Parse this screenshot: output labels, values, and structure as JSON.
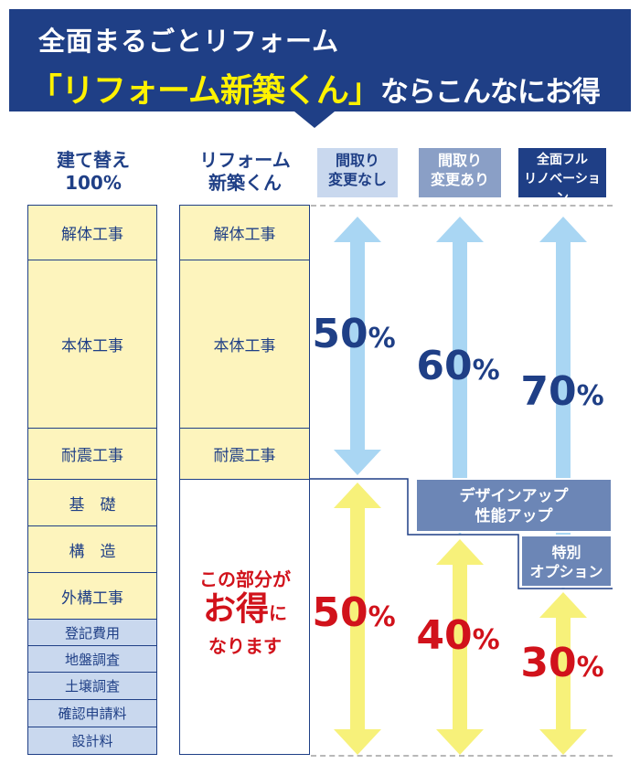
{
  "banner": {
    "line1": "全面まるごとリフォーム",
    "line2_highlight": "「リフォーム新築くん」",
    "line2_rest": "ならこんなにお得"
  },
  "headers": {
    "rebuild": "建て替え\n100%",
    "reform": "リフォーム\n新築くん",
    "no_change": "間取り\n変更なし",
    "with_change": "間取り\n変更あり",
    "full": "全面フル\nリノベーション"
  },
  "rebuild_items": [
    "解体工事",
    "本体工事",
    "耐震工事",
    "基　礎",
    "構　造",
    "外構工事",
    "登記費用",
    "地盤調査",
    "土壌調査",
    "確認申請料",
    "設計料"
  ],
  "reform_items": [
    "解体工事",
    "本体工事",
    "耐震工事"
  ],
  "savings_note": {
    "line1": "この部分が",
    "line2": "お得",
    "line2_small": "に",
    "line3": "なります"
  },
  "cost_percents": [
    {
      "value": "50",
      "unit": "%"
    },
    {
      "value": "60",
      "unit": "%"
    },
    {
      "value": "70",
      "unit": "%"
    }
  ],
  "savings_percents": [
    {
      "value": "50",
      "unit": "%"
    },
    {
      "value": "40",
      "unit": "%"
    },
    {
      "value": "30",
      "unit": "%"
    }
  ],
  "options": {
    "design": "デザインアップ\n性能アップ",
    "special": "特別\nオプション"
  },
  "colors": {
    "navy": "#1f3f86",
    "red": "#d1121b",
    "yellow_box": "#fdf4bd",
    "blue_box": "#c9d8ee",
    "arrow_blue": "#a9d6f3",
    "arrow_yellow": "#f7f17a",
    "option": "#6c86b6",
    "banner_text": "#fff200"
  }
}
